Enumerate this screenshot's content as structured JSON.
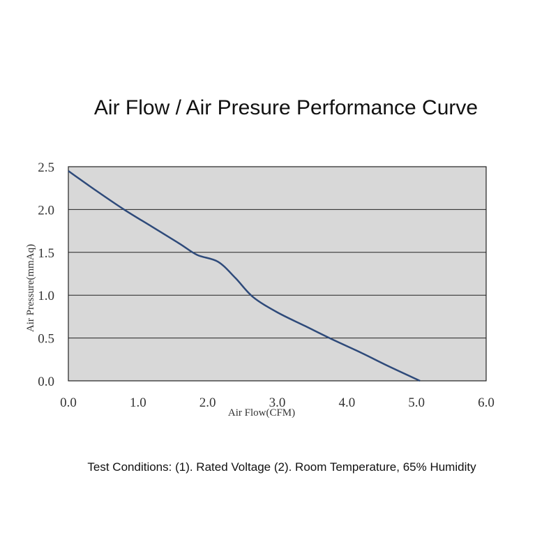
{
  "chart_data": {
    "type": "line",
    "title": "Air Flow / Air Presure Performance Curve",
    "xlabel": "Air Flow(CFM)",
    "ylabel": "Air Pressure(mmAq)",
    "xlim": [
      0,
      6
    ],
    "ylim": [
      0,
      2.5
    ],
    "x_ticks": [
      "0.0",
      "1.0",
      "2.0",
      "3.0",
      "4.0",
      "5.0",
      "6.0"
    ],
    "y_ticks": [
      "0.0",
      "0.5",
      "1.0",
      "1.5",
      "2.0",
      "2.5"
    ],
    "grid": "horizontal",
    "colors": {
      "plot_bg": "#d8d8d8",
      "line": "#2e4a7a"
    },
    "series": [
      {
        "x": [
          0.0,
          0.4,
          0.8,
          1.2,
          1.6,
          1.85,
          2.15,
          2.4,
          2.65,
          3.0,
          3.4,
          3.8,
          4.2,
          4.6,
          5.05
        ],
        "y": [
          2.45,
          2.22,
          2.0,
          1.8,
          1.6,
          1.47,
          1.39,
          1.2,
          0.98,
          0.8,
          0.64,
          0.48,
          0.33,
          0.17,
          0.0
        ]
      }
    ]
  },
  "footnote": "Test Conditions:  (1). Rated Voltage (2). Room Temperature, 65% Humidity"
}
